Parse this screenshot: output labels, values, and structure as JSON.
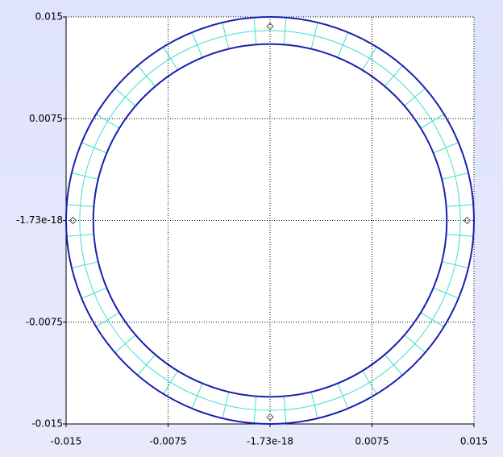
{
  "chart_data": {
    "type": "mesh",
    "xlim": [
      -0.015,
      0.015
    ],
    "ylim": [
      -0.015,
      0.015
    ],
    "xticks": [
      -0.015,
      -0.0075,
      -1.73e-18,
      0.0075,
      0.015
    ],
    "yticks": [
      -0.015,
      -0.0075,
      -1.73e-18,
      0.0075,
      0.015
    ],
    "grid": true,
    "rings": [
      {
        "radius": 0.013,
        "color": "#1a1fb0"
      },
      {
        "radius": 0.014,
        "color": "#3ee0c8"
      },
      {
        "radius": 0.015,
        "color": "#1a1fb0"
      }
    ],
    "radial_divisions": 40,
    "radial_color": "#3ee0c8",
    "markers": {
      "x": [
        0,
        -0.0145,
        0.0145,
        0
      ],
      "y": [
        0.0143,
        0,
        0,
        -0.0145
      ],
      "color": "#555555"
    }
  }
}
